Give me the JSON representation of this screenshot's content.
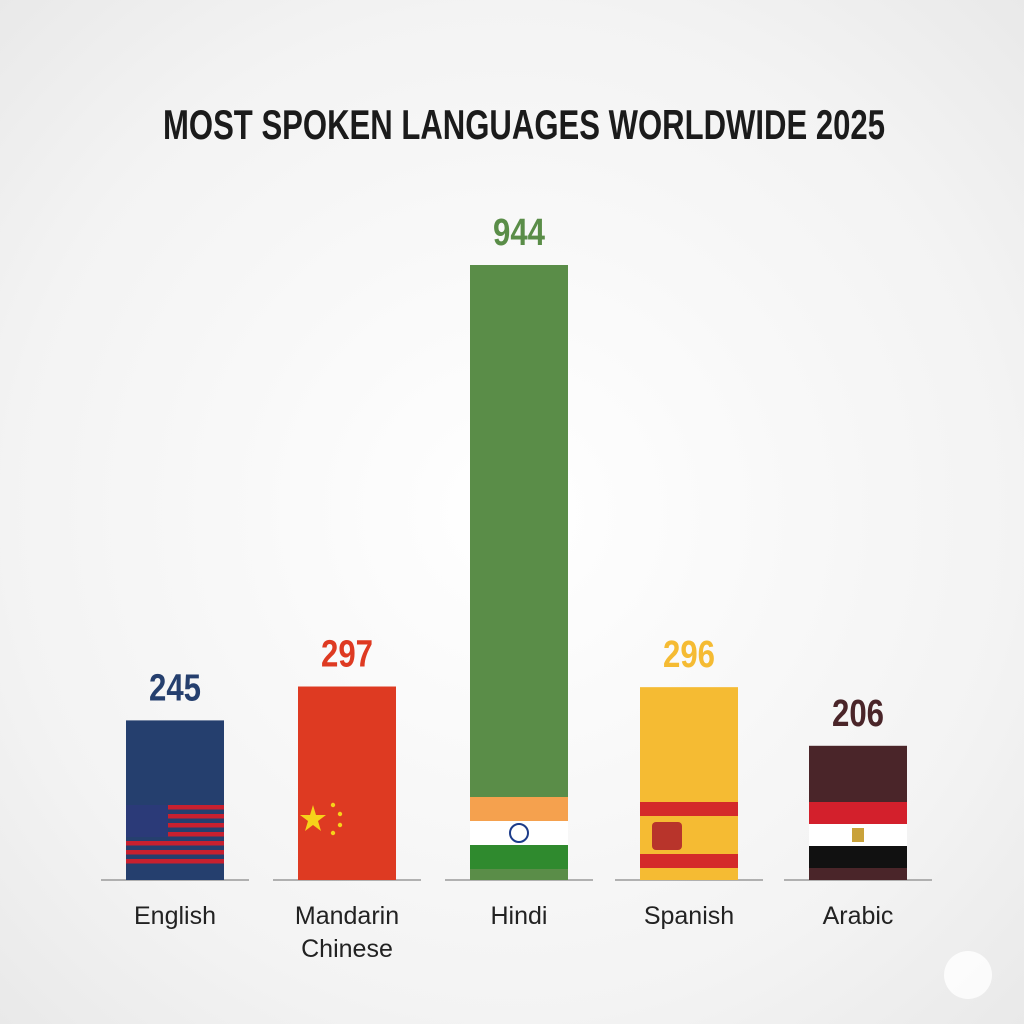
{
  "chart_data": {
    "type": "bar",
    "title": "MOST SPOKEN LANGUAGES WORLDWIDE 2025",
    "categories": [
      "English",
      "Mandarin Chinese",
      "Hindi",
      "Spanish",
      "Arabic"
    ],
    "values": [
      245,
      297,
      944,
      296,
      206
    ],
    "colors": [
      "#253f6e",
      "#de3a22",
      "#5a8d48",
      "#f5bb33",
      "#4a2529"
    ]
  }
}
